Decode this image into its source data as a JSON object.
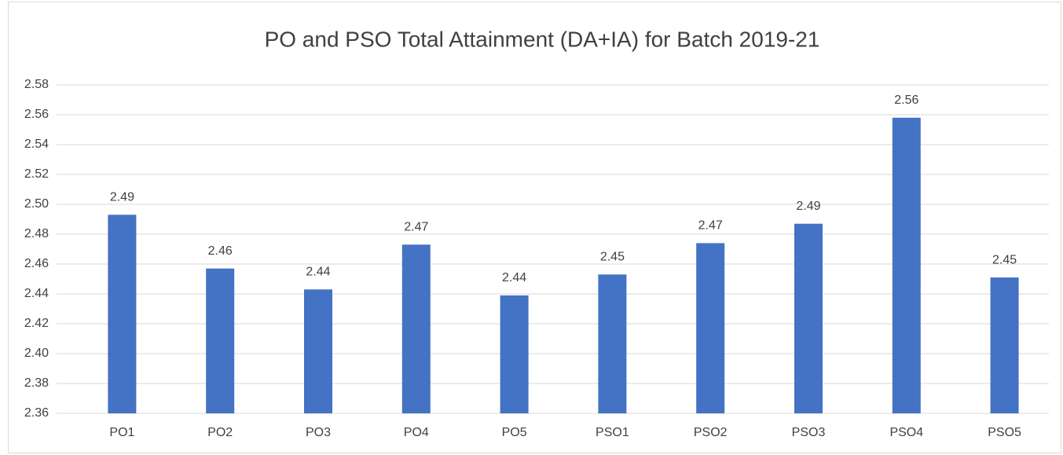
{
  "chart_data": {
    "type": "bar",
    "title": "PO and PSO Total Attainment (DA+IA) for Batch 2019-21",
    "categories": [
      "PO1",
      "PO2",
      "PO3",
      "PO4",
      "PO5",
      "PSO1",
      "PSO2",
      "PSO3",
      "PSO4",
      "PSO5"
    ],
    "values": [
      2.493,
      2.457,
      2.443,
      2.473,
      2.439,
      2.453,
      2.474,
      2.487,
      2.558,
      2.451
    ],
    "value_labels": [
      "2.49",
      "2.46",
      "2.44",
      "2.47",
      "2.44",
      "2.45",
      "2.47",
      "2.49",
      "2.56",
      "2.45"
    ],
    "color": "#4472c4",
    "ylim": [
      2.36,
      2.58
    ],
    "yticks": [
      2.36,
      2.38,
      {
        "value": 2.4,
        "label": "2.40"
      },
      2.42,
      2.44,
      2.46,
      2.48,
      {
        "value": 2.5,
        "label": "2.50"
      },
      2.52,
      2.54,
      2.56,
      2.58
    ],
    "grid": true
  }
}
